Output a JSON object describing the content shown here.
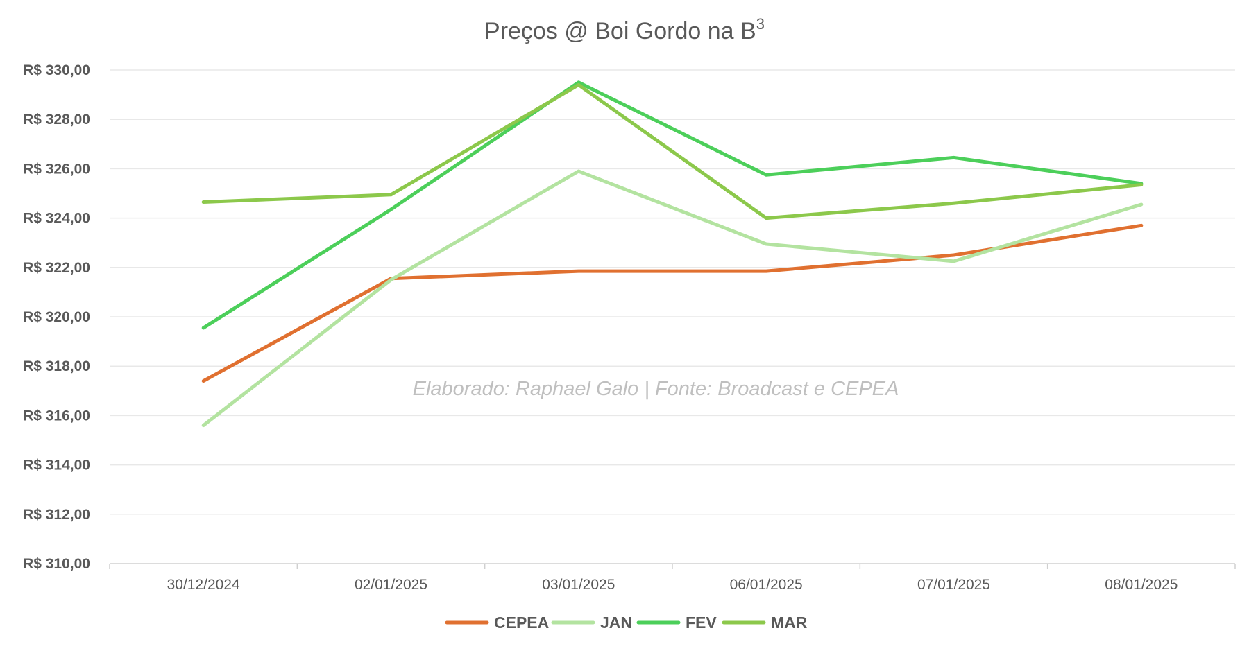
{
  "chart_data": {
    "type": "line",
    "title": "Preços @ Boi Gordo na B",
    "title_superscript": "3",
    "categories": [
      "30/12/2024",
      "02/01/2025",
      "03/01/2025",
      "06/01/2025",
      "07/01/2025",
      "08/01/2025"
    ],
    "ylim": [
      310,
      330
    ],
    "yticks": [
      310,
      312,
      314,
      316,
      318,
      320,
      322,
      324,
      326,
      328,
      330
    ],
    "ytick_labels": [
      "R$ 310,00",
      "R$ 312,00",
      "R$ 314,00",
      "R$ 316,00",
      "R$ 318,00",
      "R$ 320,00",
      "R$ 322,00",
      "R$ 324,00",
      "R$ 326,00",
      "R$ 328,00",
      "R$ 330,00"
    ],
    "grid": true,
    "legend_position": "bottom",
    "annotation": "Elaborado: Raphael Galo | Fonte: Broadcast e CEPEA",
    "series": [
      {
        "name": "CEPEA",
        "color": "#e07030",
        "values": [
          317.4,
          321.55,
          321.85,
          321.85,
          322.5,
          323.7
        ]
      },
      {
        "name": "JAN",
        "color": "#b3e3a0",
        "values": [
          315.6,
          321.5,
          325.9,
          322.95,
          322.25,
          324.55
        ]
      },
      {
        "name": "FEV",
        "color": "#4ccf5a",
        "values": [
          319.55,
          324.35,
          329.5,
          325.75,
          326.45,
          325.4
        ]
      },
      {
        "name": "MAR",
        "color": "#8cc84b",
        "values": [
          324.65,
          324.95,
          329.4,
          324.0,
          324.6,
          325.35
        ]
      }
    ]
  }
}
